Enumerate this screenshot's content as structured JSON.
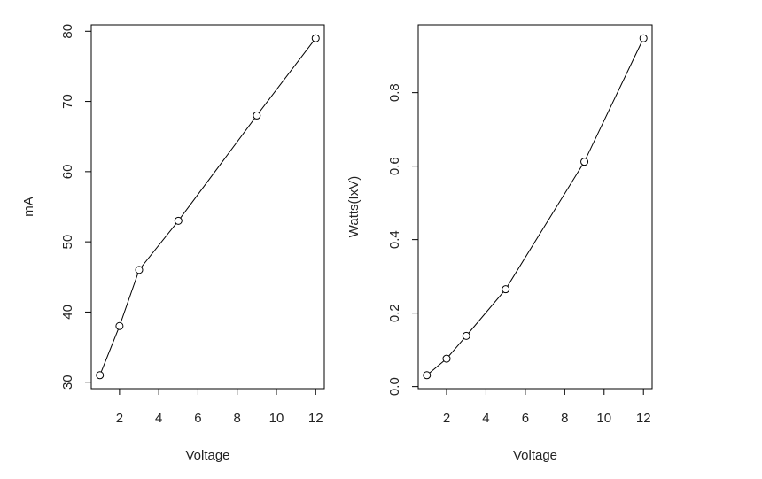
{
  "chart_data": [
    {
      "type": "line",
      "xlabel": "Voltage",
      "ylabel": "mA",
      "x": [
        1,
        2,
        3,
        5,
        9,
        12
      ],
      "values": [
        31,
        38,
        46,
        53,
        68,
        79
      ],
      "color": "#000000",
      "xlim": [
        0.56,
        12.44
      ],
      "xticks": [
        2,
        4,
        6,
        8,
        10,
        12
      ],
      "ylim": [
        29.08,
        80.92
      ],
      "yticks": [
        30,
        40,
        50,
        60,
        70,
        80
      ]
    },
    {
      "type": "line",
      "xlabel": "Voltage",
      "ylabel": "Watts(IxV)",
      "x": [
        1,
        2,
        3,
        5,
        9,
        12
      ],
      "values": [
        0.031,
        0.076,
        0.138,
        0.265,
        0.612,
        0.948
      ],
      "color": "#000000",
      "xlim": [
        0.56,
        12.44
      ],
      "xticks": [
        2,
        4,
        6,
        8,
        10,
        12
      ],
      "ylim": [
        -0.0057,
        0.9847
      ],
      "yticks": [
        {
          "value": 0,
          "label": "0.0"
        },
        0.2,
        0.4,
        0.6,
        0.8
      ]
    }
  ]
}
